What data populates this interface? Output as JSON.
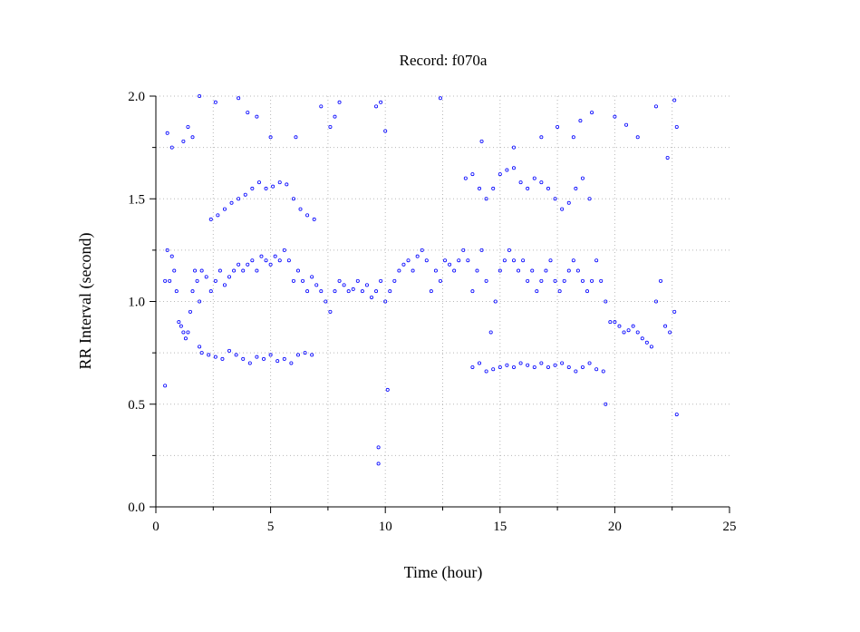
{
  "chart_data": {
    "type": "scatter",
    "title": "Record:  f070a",
    "xlabel": "Time (hour)",
    "ylabel": "RR Interval (second)",
    "xlim": [
      0,
      25
    ],
    "ylim": [
      0,
      2
    ],
    "x_ticks": [
      0,
      5,
      10,
      15,
      20,
      25
    ],
    "x_tick_labels": [
      "0",
      "5",
      "10",
      "15",
      "20",
      "25"
    ],
    "y_ticks": [
      0,
      0.5,
      1,
      1.5,
      2
    ],
    "y_tick_labels": [
      "0.0",
      "0.5",
      "1.0",
      "1.5",
      "2.0"
    ],
    "grid": true,
    "marker": "open-circle",
    "point_color": "#0000ff",
    "series": [
      {
        "x": [
          0.4,
          0.5,
          0.6,
          0.7,
          0.8,
          0.9,
          1.0,
          1.1,
          1.2,
          1.3,
          1.4,
          1.5,
          1.6,
          1.7,
          1.8,
          1.9,
          2.0,
          2.2,
          2.4,
          2.6,
          2.8,
          3.0,
          3.2,
          3.4,
          3.6,
          3.8,
          4.0,
          4.2,
          4.4,
          4.6,
          4.8,
          5.0,
          5.2,
          5.4,
          5.6,
          5.8,
          6.0,
          6.2,
          6.4,
          6.6,
          6.8,
          7.0,
          7.2,
          7.4,
          7.6,
          7.8,
          8.0,
          8.2,
          8.4,
          8.6,
          8.8,
          9.0,
          9.2,
          9.4,
          9.6,
          9.8,
          10.0,
          10.2,
          10.4,
          10.6,
          10.8,
          11.0,
          11.2,
          11.4,
          11.6,
          11.8,
          12.0,
          12.2,
          12.4,
          12.6,
          12.8,
          13.0,
          13.2,
          13.4,
          13.6,
          13.8,
          14.0,
          14.2,
          14.4,
          14.6,
          14.8,
          15.0,
          15.2,
          15.4,
          15.6,
          15.8,
          16.0,
          16.2,
          16.4,
          16.6,
          16.8,
          17.0,
          17.2,
          17.4,
          17.6,
          17.8,
          18.0,
          18.2,
          18.4,
          18.6,
          18.8,
          19.0,
          19.2,
          19.4,
          19.6,
          19.8,
          20.0,
          20.2,
          20.4,
          20.6,
          20.8,
          21.0,
          21.2,
          21.4,
          21.6,
          21.8,
          22.0,
          22.2,
          22.4,
          22.6
        ],
        "y": [
          1.1,
          1.25,
          1.1,
          1.22,
          1.15,
          1.05,
          0.9,
          0.88,
          0.85,
          0.82,
          0.85,
          0.95,
          1.05,
          1.15,
          1.1,
          1.0,
          1.15,
          1.12,
          1.05,
          1.1,
          1.15,
          1.08,
          1.12,
          1.15,
          1.18,
          1.15,
          1.18,
          1.2,
          1.15,
          1.22,
          1.2,
          1.18,
          1.22,
          1.2,
          1.25,
          1.2,
          1.1,
          1.15,
          1.1,
          1.05,
          1.12,
          1.08,
          1.05,
          1.0,
          0.95,
          1.05,
          1.1,
          1.08,
          1.05,
          1.06,
          1.1,
          1.05,
          1.08,
          1.02,
          1.05,
          1.1,
          1.0,
          1.05,
          1.1,
          1.15,
          1.18,
          1.2,
          1.15,
          1.22,
          1.25,
          1.2,
          1.05,
          1.15,
          1.1,
          1.2,
          1.18,
          1.15,
          1.2,
          1.25,
          1.2,
          1.05,
          1.15,
          1.25,
          1.1,
          0.85,
          1.0,
          1.15,
          1.2,
          1.25,
          1.2,
          1.15,
          1.2,
          1.1,
          1.15,
          1.05,
          1.1,
          1.15,
          1.2,
          1.1,
          1.05,
          1.1,
          1.15,
          1.2,
          1.15,
          1.1,
          1.05,
          1.1,
          1.2,
          1.1,
          1.0,
          0.9,
          0.9,
          0.88,
          0.85,
          0.86,
          0.88,
          0.85,
          0.82,
          0.8,
          0.78,
          1.0,
          1.1,
          0.88,
          0.85,
          0.95
        ]
      },
      {
        "x": [
          1.9,
          2.0,
          2.3,
          2.6,
          2.9,
          3.2,
          3.5,
          3.8,
          4.1,
          4.4,
          4.7,
          5.0,
          5.3,
          5.6,
          5.9,
          6.2,
          6.5,
          6.8,
          13.8,
          14.1,
          14.4,
          14.7,
          15.0,
          15.3,
          15.6,
          15.9,
          16.2,
          16.5,
          16.8,
          17.1,
          17.4,
          17.7,
          18.0,
          18.3,
          18.6,
          18.9,
          19.2,
          19.5
        ],
        "y": [
          0.78,
          0.75,
          0.74,
          0.73,
          0.72,
          0.76,
          0.74,
          0.72,
          0.7,
          0.73,
          0.72,
          0.74,
          0.71,
          0.72,
          0.7,
          0.74,
          0.75,
          0.74,
          0.68,
          0.7,
          0.66,
          0.67,
          0.68,
          0.69,
          0.68,
          0.7,
          0.69,
          0.68,
          0.7,
          0.68,
          0.69,
          0.7,
          0.68,
          0.66,
          0.68,
          0.7,
          0.67,
          0.66
        ]
      },
      {
        "x": [
          2.4,
          2.7,
          3.0,
          3.3,
          3.6,
          3.9,
          4.2,
          4.5,
          4.8,
          5.1,
          5.4,
          5.7,
          6.0,
          6.3,
          6.6,
          6.9,
          13.5,
          13.8,
          14.1,
          14.4,
          14.7,
          15.0,
          15.3,
          15.6,
          15.9,
          16.2,
          16.5,
          16.8,
          17.1,
          17.4,
          17.7,
          18.0,
          18.3,
          18.6,
          18.9
        ],
        "y": [
          1.4,
          1.42,
          1.45,
          1.48,
          1.5,
          1.52,
          1.55,
          1.58,
          1.55,
          1.56,
          1.58,
          1.57,
          1.5,
          1.45,
          1.42,
          1.4,
          1.6,
          1.62,
          1.55,
          1.5,
          1.55,
          1.62,
          1.64,
          1.65,
          1.58,
          1.55,
          1.6,
          1.58,
          1.55,
          1.5,
          1.45,
          1.48,
          1.55,
          1.6,
          1.5
        ]
      },
      {
        "x": [
          0.5,
          0.7,
          1.2,
          1.4,
          1.6,
          1.9,
          2.6,
          3.6,
          4.0,
          4.4,
          5.0,
          6.1,
          7.2,
          7.6,
          7.8,
          8.0,
          9.6,
          9.8,
          10.0,
          12.4,
          14.2,
          15.6,
          16.8,
          17.5,
          18.2,
          18.5,
          19.0,
          20.0,
          20.5,
          21.0,
          21.8,
          22.3,
          22.6,
          22.7,
          9.7,
          9.7,
          10.1,
          0.4,
          22.7,
          19.6
        ],
        "y": [
          1.82,
          1.75,
          1.78,
          1.85,
          1.8,
          2.0,
          1.97,
          1.99,
          1.92,
          1.9,
          1.8,
          1.8,
          1.95,
          1.85,
          1.9,
          1.97,
          1.95,
          1.97,
          1.83,
          1.99,
          1.78,
          1.75,
          1.8,
          1.85,
          1.8,
          1.88,
          1.92,
          1.9,
          1.86,
          1.8,
          1.95,
          1.7,
          1.98,
          1.85,
          0.29,
          0.21,
          0.57,
          0.59,
          0.45,
          0.5
        ]
      }
    ]
  }
}
